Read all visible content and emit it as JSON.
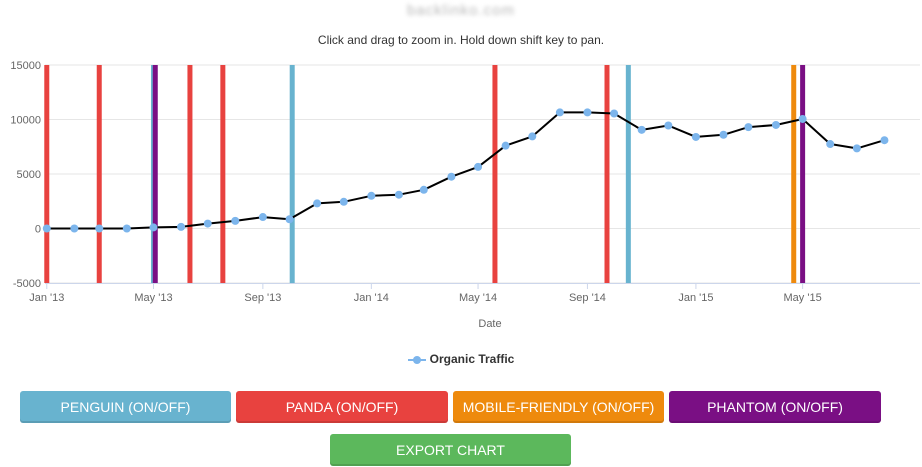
{
  "page": {
    "site_title": "backlinko.com",
    "subtitle": "Click and drag to zoom in. Hold down shift key to pan."
  },
  "chart_data": {
    "type": "line",
    "xlabel": "Date",
    "ylabel": "",
    "ylim": [
      -5000,
      15000
    ],
    "yticks": [
      -5000,
      0,
      5000,
      10000,
      15000
    ],
    "xticks": [
      {
        "label": "Jan '13",
        "date": "2013-01-01"
      },
      {
        "label": "May '13",
        "date": "2013-05-01"
      },
      {
        "label": "Sep '13",
        "date": "2013-09-01"
      },
      {
        "label": "Jan '14",
        "date": "2014-01-01"
      },
      {
        "label": "May '14",
        "date": "2014-05-01"
      },
      {
        "label": "Sep '14",
        "date": "2014-09-01"
      },
      {
        "label": "Jan '15",
        "date": "2015-01-01"
      },
      {
        "label": "May '15",
        "date": "2015-05-01"
      }
    ],
    "xrange": [
      "2012-12-30",
      "2015-09-10"
    ],
    "grid": true,
    "legend_position": "bottom-center",
    "series": [
      {
        "name": "Organic Traffic",
        "color": "#7cb5ec",
        "line_color": "#000000",
        "points": [
          {
            "date": "2013-01-01",
            "value": 0
          },
          {
            "date": "2013-02-01",
            "value": 0
          },
          {
            "date": "2013-03-01",
            "value": 0
          },
          {
            "date": "2013-04-01",
            "value": 0
          },
          {
            "date": "2013-05-01",
            "value": 100
          },
          {
            "date": "2013-06-01",
            "value": 150
          },
          {
            "date": "2013-07-01",
            "value": 450
          },
          {
            "date": "2013-08-01",
            "value": 700
          },
          {
            "date": "2013-09-01",
            "value": 1050
          },
          {
            "date": "2013-10-01",
            "value": 850
          },
          {
            "date": "2013-11-01",
            "value": 2300
          },
          {
            "date": "2013-12-01",
            "value": 2450
          },
          {
            "date": "2014-01-01",
            "value": 3000
          },
          {
            "date": "2014-02-01",
            "value": 3100
          },
          {
            "date": "2014-03-01",
            "value": 3550
          },
          {
            "date": "2014-04-01",
            "value": 4750
          },
          {
            "date": "2014-05-01",
            "value": 5650
          },
          {
            "date": "2014-06-01",
            "value": 7600
          },
          {
            "date": "2014-07-01",
            "value": 8450
          },
          {
            "date": "2014-08-01",
            "value": 10650
          },
          {
            "date": "2014-09-01",
            "value": 10650
          },
          {
            "date": "2014-10-01",
            "value": 10550
          },
          {
            "date": "2014-11-01",
            "value": 9050
          },
          {
            "date": "2014-12-01",
            "value": 9450
          },
          {
            "date": "2015-01-01",
            "value": 8400
          },
          {
            "date": "2015-02-01",
            "value": 8600
          },
          {
            "date": "2015-03-01",
            "value": 9300
          },
          {
            "date": "2015-04-01",
            "value": 9500
          },
          {
            "date": "2015-05-01",
            "value": 10050
          },
          {
            "date": "2015-06-01",
            "value": 7750
          },
          {
            "date": "2015-07-01",
            "value": 7350
          },
          {
            "date": "2015-08-01",
            "value": 8100
          }
        ]
      }
    ],
    "update_bands": [
      {
        "type": "panda",
        "date": "2013-01-01"
      },
      {
        "type": "panda",
        "date": "2013-03-01"
      },
      {
        "type": "penguin",
        "date": "2013-05-01"
      },
      {
        "type": "phantom",
        "date": "2013-05-03"
      },
      {
        "type": "panda",
        "date": "2013-06-11"
      },
      {
        "type": "panda",
        "date": "2013-07-18"
      },
      {
        "type": "penguin",
        "date": "2013-10-04"
      },
      {
        "type": "panda",
        "date": "2014-05-20"
      },
      {
        "type": "panda",
        "date": "2014-09-23"
      },
      {
        "type": "penguin",
        "date": "2014-10-17"
      },
      {
        "type": "mobile_friendly",
        "date": "2015-04-21"
      },
      {
        "type": "phantom",
        "date": "2015-05-01"
      }
    ],
    "colors": {
      "penguin": "#68b3cf",
      "panda": "#e8423f",
      "mobile_friendly": "#ee8a0d",
      "phantom": "#7a0f84",
      "gridline": "#e6e6e6",
      "point": "#7cb5ec"
    }
  },
  "buttons": {
    "penguin": {
      "label": "PENGUIN (ON/OFF)",
      "color": "#68b3cf"
    },
    "panda": {
      "label": "PANDA (ON/OFF)",
      "color": "#e8423f"
    },
    "mobile_friendly": {
      "label": "MOBILE-FRIENDLY (ON/OFF)",
      "color": "#ee8a0d"
    },
    "phantom": {
      "label": "PHANTOM (ON/OFF)",
      "color": "#7a0f84"
    },
    "export": {
      "label": "EXPORT CHART",
      "color": "#5cb85c"
    }
  }
}
